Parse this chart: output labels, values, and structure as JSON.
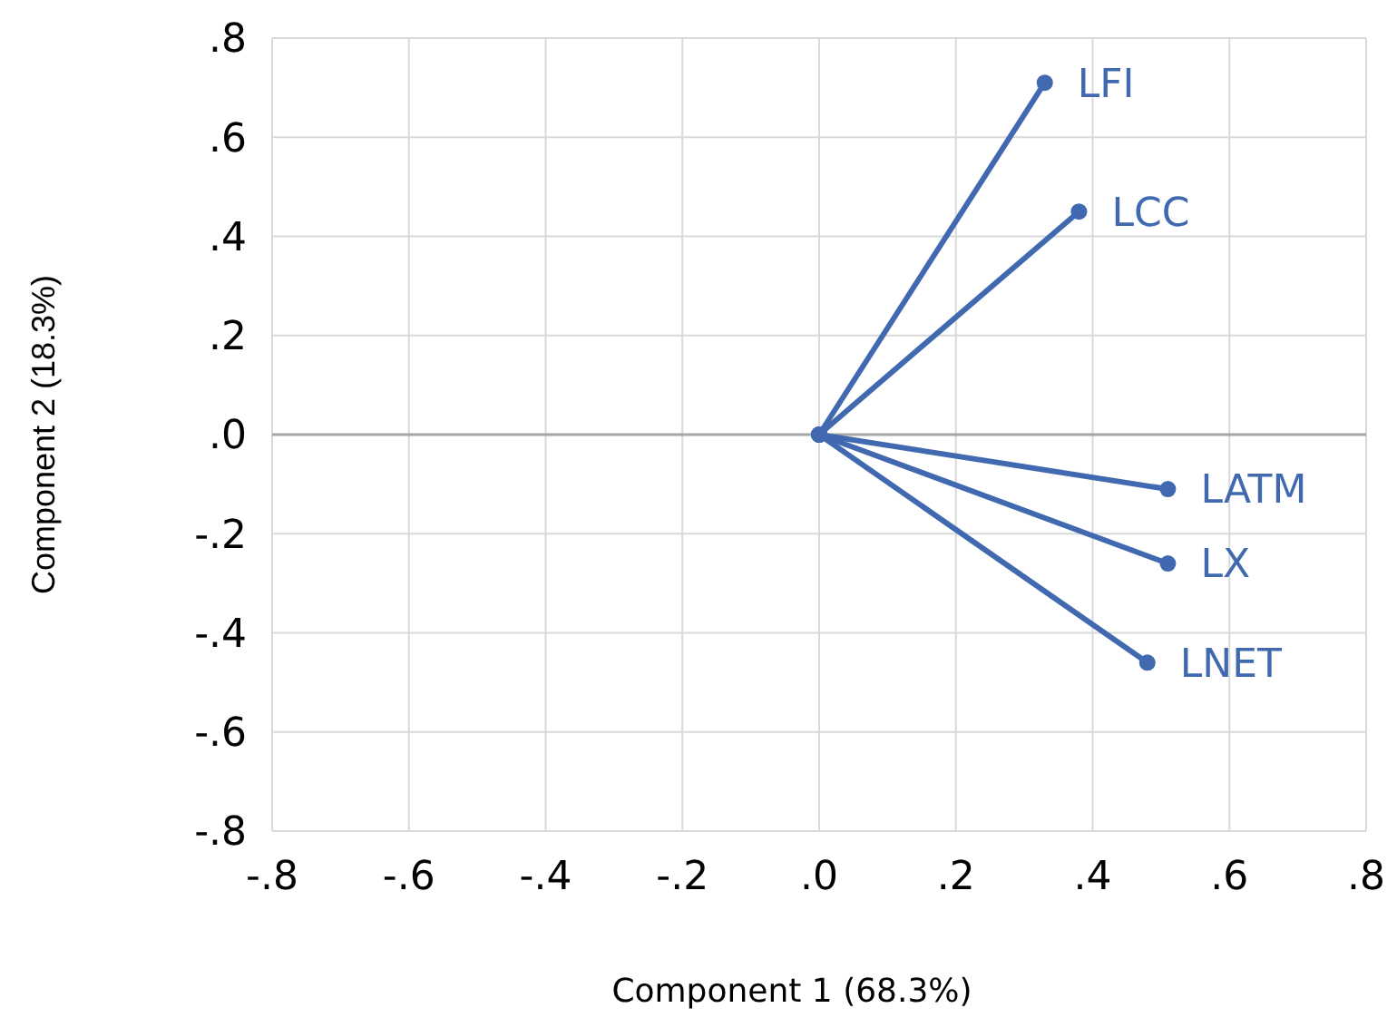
{
  "chart_data": {
    "type": "line",
    "xlabel": "Component 1 (68.3%)",
    "ylabel": "Component 2 (18.3%)",
    "xlim": [
      -0.8,
      0.8
    ],
    "ylim": [
      -0.8,
      0.8
    ],
    "xticks": [
      {
        "value": -0.8,
        "label": "-.8"
      },
      {
        "value": -0.6,
        "label": "-.6"
      },
      {
        "value": -0.4,
        "label": "-.4"
      },
      {
        "value": -0.2,
        "label": "-.2"
      },
      {
        "value": 0,
        "label": ".0"
      },
      {
        "value": 0.2,
        "label": ".2"
      },
      {
        "value": 0.4,
        "label": ".4"
      },
      {
        "value": 0.6,
        "label": ".6"
      },
      {
        "value": 0.8,
        "label": ".8"
      }
    ],
    "yticks": [
      {
        "value": -0.8,
        "label": "-.8"
      },
      {
        "value": -0.6,
        "label": "-.6"
      },
      {
        "value": -0.4,
        "label": "-.4"
      },
      {
        "value": -0.2,
        "label": "-.2"
      },
      {
        "value": 0,
        "label": ".0"
      },
      {
        "value": 0.2,
        "label": ".2"
      },
      {
        "value": 0.4,
        "label": ".4"
      },
      {
        "value": 0.6,
        "label": ".6"
      },
      {
        "value": 0.8,
        "label": ".8"
      }
    ],
    "grid": true,
    "marker": "circle",
    "line_style": "solid",
    "ref_lines": [
      {
        "axis": "y",
        "value": 0,
        "color": "#a6a6a6"
      }
    ],
    "series": [
      {
        "name": "LFI",
        "color": "#4169b0",
        "x": [
          0,
          0.33
        ],
        "values": [
          0,
          0.71
        ]
      },
      {
        "name": "LCC",
        "color": "#4169b0",
        "x": [
          0,
          0.38
        ],
        "values": [
          0,
          0.45
        ]
      },
      {
        "name": "LATM",
        "color": "#4169b0",
        "x": [
          0,
          0.51
        ],
        "values": [
          0,
          -0.11
        ]
      },
      {
        "name": "LX",
        "color": "#4169b0",
        "x": [
          0,
          0.51
        ],
        "values": [
          0,
          -0.26
        ]
      },
      {
        "name": "LNET",
        "color": "#4169b0",
        "x": [
          0,
          0.48
        ],
        "values": [
          0,
          -0.46
        ]
      }
    ]
  }
}
